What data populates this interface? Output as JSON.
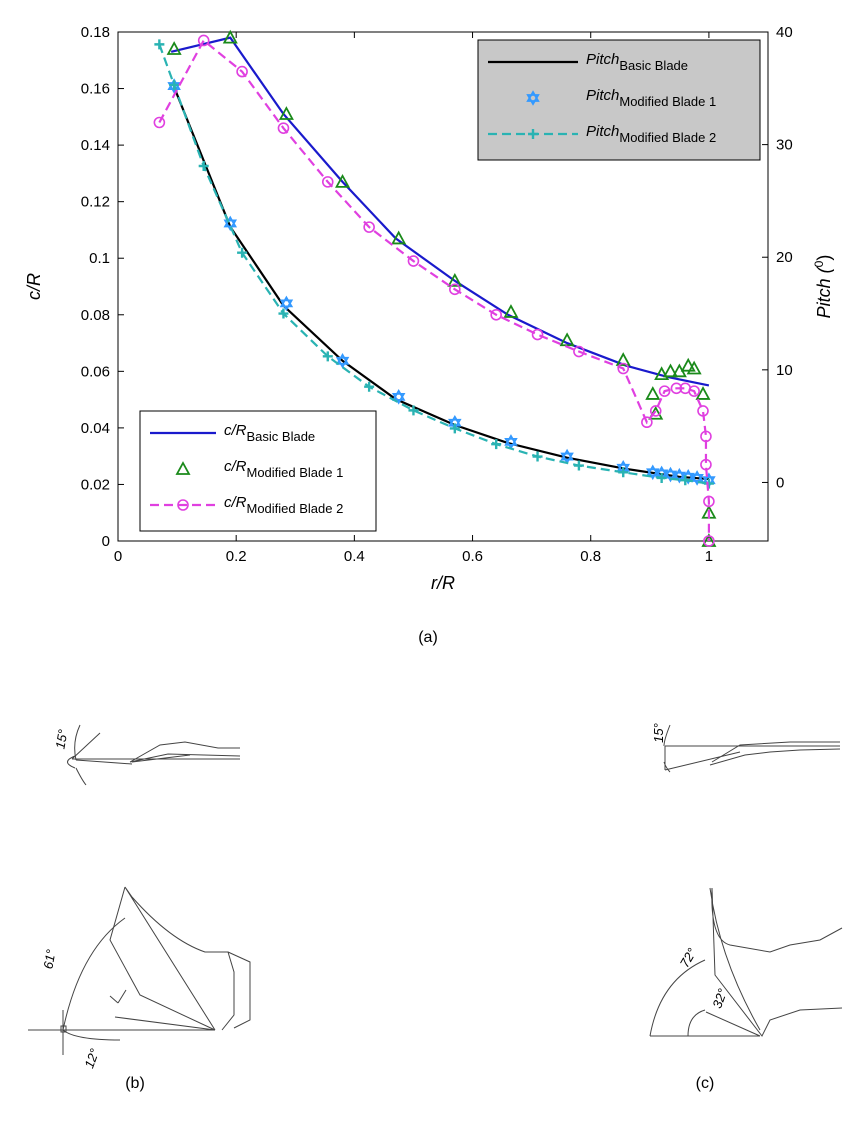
{
  "chart_data": {
    "type": "line",
    "xlabel": "r/R",
    "ylabel": "c/R",
    "y2label": "Pitch (",
    "y2label_sup": "0",
    "y2label_end": ")",
    "xlim": [
      0,
      1.1
    ],
    "xticks": [
      0,
      0.2,
      0.4,
      0.6,
      0.8,
      1
    ],
    "ylim": [
      0,
      0.18
    ],
    "yticks": [
      0,
      0.02,
      0.04,
      0.06,
      0.08,
      0.1,
      0.12,
      0.14,
      0.16,
      0.18
    ],
    "y2lim": [
      -5.2,
      40
    ],
    "y2ticks": [
      0,
      10,
      20,
      30,
      40
    ],
    "grid": false,
    "legends": [
      {
        "loc": "upper right",
        "axis": "y2",
        "background": "#c8c8c8"
      },
      {
        "loc": "lower left",
        "axis": "y",
        "background": "#ffffff"
      }
    ],
    "series": [
      {
        "name": "Pitch",
        "subscript": "Basic Blade",
        "axis": "y2",
        "color": "#000000",
        "line": "solid",
        "marker": "none",
        "x": [
          0.095,
          0.19,
          0.28,
          0.38,
          0.47,
          0.57,
          0.66,
          0.76,
          0.86,
          0.95,
          1.0
        ],
        "values": [
          35.1,
          22.7,
          15.7,
          10.8,
          7.4,
          5.1,
          3.5,
          2.2,
          1.2,
          0.5,
          0.3
        ]
      },
      {
        "name": "Pitch",
        "subscript": "Modified Blade 1",
        "axis": "y2",
        "color": "#3399ff",
        "line": "none",
        "marker": "star",
        "x": [
          0.095,
          0.19,
          0.285,
          0.38,
          0.475,
          0.57,
          0.665,
          0.76,
          0.855,
          0.905,
          0.92,
          0.935,
          0.95,
          0.965,
          0.98,
          1.0
        ],
        "values": [
          35.2,
          23.0,
          15.9,
          10.8,
          7.6,
          5.3,
          3.6,
          2.3,
          1.3,
          0.9,
          0.8,
          0.7,
          0.6,
          0.5,
          0.4,
          0.2
        ]
      },
      {
        "name": "Pitch",
        "subscript": "Modified Blade 2",
        "axis": "y2",
        "color": "#2ab3b3",
        "line": "dashed",
        "marker": "plus",
        "x": [
          0.07,
          0.095,
          0.145,
          0.21,
          0.28,
          0.355,
          0.425,
          0.5,
          0.57,
          0.64,
          0.71,
          0.78,
          0.855,
          0.92,
          0.96,
          1.0
        ],
        "values": [
          38.9,
          35.3,
          28.1,
          20.4,
          15.0,
          11.2,
          8.5,
          6.4,
          4.8,
          3.4,
          2.3,
          1.5,
          0.9,
          0.4,
          0.2,
          -0.1
        ]
      },
      {
        "name": "c/R",
        "subscript": "Basic Blade",
        "axis": "y",
        "color": "#1a1acc",
        "line": "solid",
        "marker": "none",
        "x": [
          0.09,
          0.19,
          0.28,
          0.38,
          0.47,
          0.57,
          0.66,
          0.76,
          0.86,
          0.93,
          1.0
        ],
        "values": [
          0.173,
          0.178,
          0.151,
          0.127,
          0.107,
          0.092,
          0.08,
          0.07,
          0.062,
          0.058,
          0.055
        ]
      },
      {
        "name": "c/R",
        "subscript": "Modified Blade 1",
        "axis": "y",
        "color": "#1a8a1a",
        "line": "none",
        "marker": "triangle",
        "x": [
          0.095,
          0.19,
          0.285,
          0.38,
          0.475,
          0.57,
          0.665,
          0.76,
          0.855,
          0.905,
          0.91,
          0.92,
          0.935,
          0.95,
          0.965,
          0.975,
          0.99,
          1.0,
          1.0
        ],
        "values": [
          0.174,
          0.178,
          0.151,
          0.127,
          0.107,
          0.092,
          0.081,
          0.071,
          0.064,
          0.052,
          0.045,
          0.059,
          0.06,
          0.06,
          0.062,
          0.061,
          0.052,
          0.01,
          0.0
        ]
      },
      {
        "name": "c/R",
        "subscript": "Modified Blade 2",
        "axis": "y",
        "color": "#e040e0",
        "line": "dashed",
        "marker": "circle",
        "x": [
          0.07,
          0.145,
          0.21,
          0.28,
          0.355,
          0.425,
          0.5,
          0.57,
          0.64,
          0.71,
          0.78,
          0.855,
          0.895,
          0.91,
          0.925,
          0.945,
          0.96,
          0.975,
          0.99,
          0.995,
          0.995,
          1.0,
          1.0
        ],
        "values": [
          0.148,
          0.177,
          0.166,
          0.146,
          0.127,
          0.111,
          0.099,
          0.089,
          0.08,
          0.073,
          0.067,
          0.061,
          0.042,
          0.046,
          0.053,
          0.054,
          0.054,
          0.053,
          0.046,
          0.037,
          0.027,
          0.014,
          0.0
        ]
      }
    ]
  },
  "figure": {
    "captions": [
      "(a)",
      "(b)",
      "(c)"
    ],
    "angle_labels": [
      "15°",
      "61°",
      "12°",
      "15°",
      "72°",
      "32°"
    ]
  }
}
